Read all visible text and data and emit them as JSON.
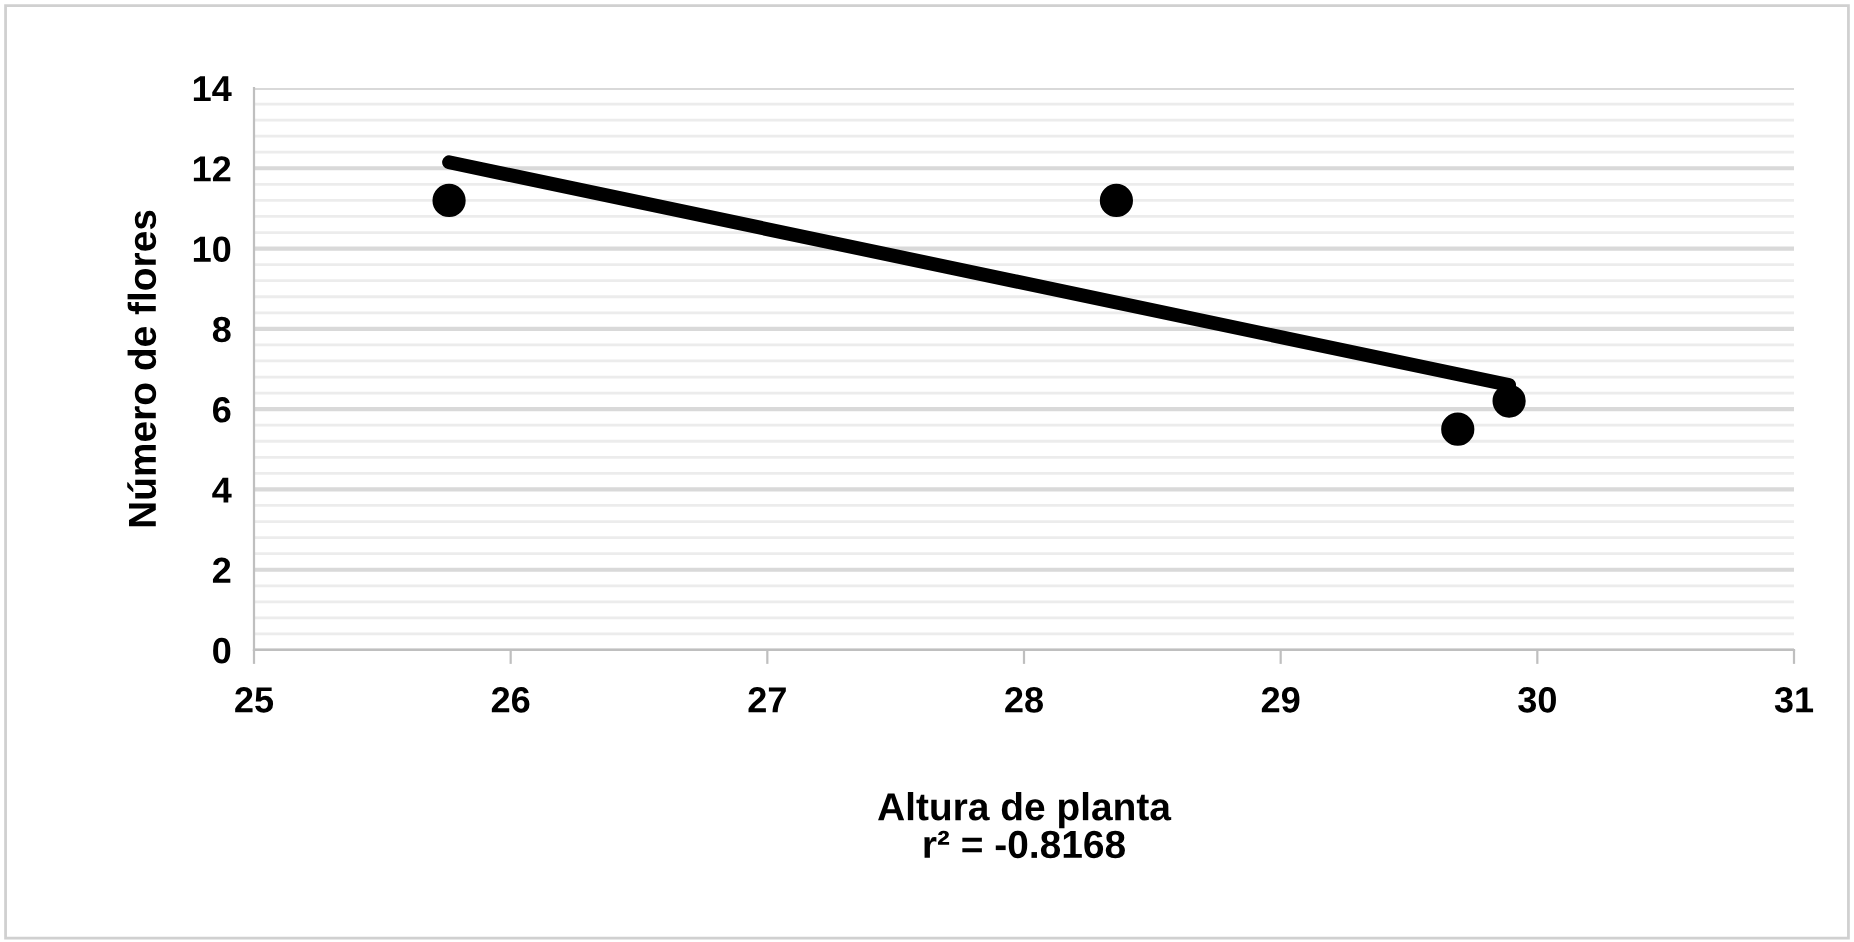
{
  "chart_data": {
    "type": "scatter",
    "xlabel": "Altura de planta",
    "ylabel": "Número de flores",
    "annotations": [
      "r² = -0.8168"
    ],
    "series": [
      {
        "color": "#000000",
        "marker": "circle",
        "x": [
          25.76,
          28.36,
          29.69,
          29.89
        ],
        "values": [
          11.2,
          11.2,
          5.5,
          6.2
        ]
      },
      {
        "type": "line",
        "color": "#000000",
        "marker": "none",
        "line_style": "solid",
        "x": [
          25.76,
          29.89
        ],
        "values": [
          12.15,
          6.6
        ]
      }
    ],
    "xlim": [
      25,
      31
    ],
    "xticks": [
      25,
      26,
      27,
      28,
      29,
      30,
      31
    ],
    "ylim": [
      0,
      14
    ],
    "yticks": [
      0,
      2,
      4,
      6,
      8,
      10,
      12,
      14
    ],
    "grid": "y",
    "legend": false
  }
}
